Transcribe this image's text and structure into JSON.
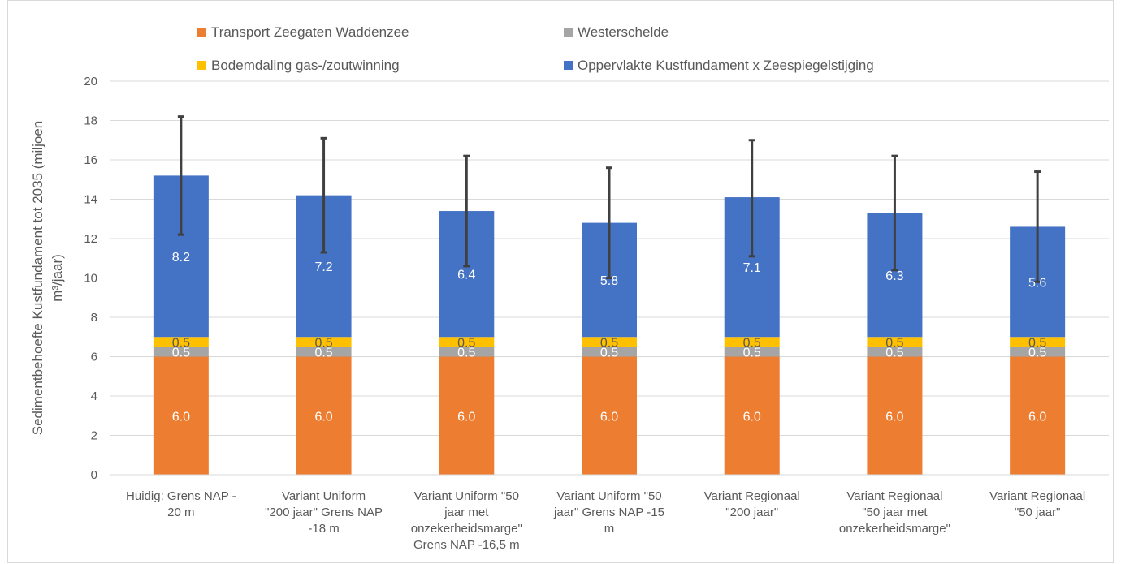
{
  "chart_data": {
    "type": "bar",
    "stacked": true,
    "title": "",
    "xlabel": "",
    "ylabel": "Sedimentbehoefte Kustfundament tot 2035 (miljoen m³/jaar)",
    "ylabel_lines": [
      "Sedimentbehoefte Kustfundament tot 2035 (miljoen",
      "m³/jaar)"
    ],
    "ylim": [
      0,
      20
    ],
    "yticks": [
      0,
      2,
      4,
      6,
      8,
      10,
      12,
      14,
      16,
      18,
      20
    ],
    "grid": true,
    "legend_position": "top",
    "categories": [
      [
        "Huidig: Grens NAP -",
        "20 m"
      ],
      [
        "Variant Uniform",
        "\"200 jaar\" Grens NAP",
        "-18 m"
      ],
      [
        "Variant Uniform \"50",
        "jaar met",
        "onzekerheidsmarge\"",
        "Grens NAP -16,5 m"
      ],
      [
        "Variant Uniform \"50",
        "jaar\" Grens NAP -15",
        "m"
      ],
      [
        "Variant Regionaal",
        "\"200 jaar\""
      ],
      [
        "Variant Regionaal",
        "\"50 jaar met",
        "onzekerheidsmarge\""
      ],
      [
        "Variant Regionaal",
        "\"50 jaar\""
      ]
    ],
    "series": [
      {
        "name": "Transport Zeegaten Waddenzee",
        "color": "#ED7D31",
        "values": [
          6.0,
          6.0,
          6.0,
          6.0,
          6.0,
          6.0,
          6.0
        ],
        "labels": [
          "6.0",
          "6.0",
          "6.0",
          "6.0",
          "6.0",
          "6.0",
          "6.0"
        ],
        "label_color": "#ffffff"
      },
      {
        "name": "Westerschelde",
        "color": "#A5A5A5",
        "values": [
          0.5,
          0.5,
          0.5,
          0.5,
          0.5,
          0.5,
          0.5
        ],
        "labels": [
          "0.5",
          "0.5",
          "0.5",
          "0.5",
          "0.5",
          "0.5",
          "0.5"
        ],
        "label_color": "#ffffff"
      },
      {
        "name": "Bodemdaling gas-/zoutwinning",
        "color": "#FFC000",
        "values": [
          0.5,
          0.5,
          0.5,
          0.5,
          0.5,
          0.5,
          0.5
        ],
        "labels": [
          "0.5",
          "0.5",
          "0.5",
          "0.5",
          "0.5",
          "0.5",
          "0.5"
        ],
        "label_color": "#595959"
      },
      {
        "name": "Oppervlakte Kustfundament x Zeespiegelstijging",
        "color": "#4472C4",
        "values": [
          8.2,
          7.2,
          6.4,
          5.8,
          7.1,
          6.3,
          5.6
        ],
        "labels": [
          "8.2",
          "7.2",
          "6.4",
          "5.8",
          "7.1",
          "6.3",
          "5.6"
        ],
        "label_color": "#ffffff"
      }
    ],
    "error_bars": {
      "color": "#404040",
      "low": [
        12.2,
        11.3,
        10.6,
        10.0,
        11.1,
        10.4,
        9.8
      ],
      "high": [
        18.2,
        17.1,
        16.2,
        15.6,
        17.0,
        16.2,
        15.4
      ]
    },
    "legend_rows": [
      [
        0,
        1
      ],
      [
        2,
        3
      ]
    ]
  }
}
